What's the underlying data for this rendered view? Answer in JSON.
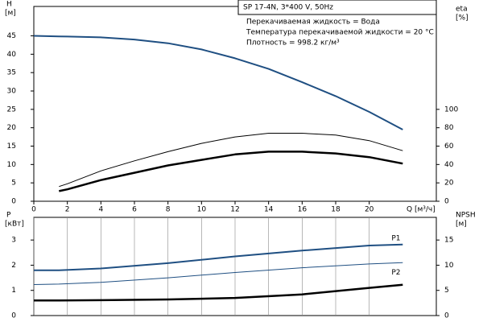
{
  "chart_data": [
    {
      "type": "line",
      "title": "SP 17-4N, 3*400 V, 50Hz",
      "annotations": [
        "Перекачиваемая жидкость = Вода",
        "Температура перекачиваемой жидкости = 20 °C",
        "Плотность = 998.2 кг/м³"
      ],
      "ylabel": "H",
      "yunit": "[м]",
      "y2label": "eta",
      "y2unit": "[%]",
      "xlabel": "Q [м³/ч]",
      "x": [
        0,
        1.5,
        2,
        4,
        6,
        8,
        10,
        12,
        14,
        16,
        18,
        20,
        22
      ],
      "xlim": [
        0,
        24
      ],
      "xticks": [
        0,
        2,
        4,
        6,
        8,
        10,
        12,
        14,
        16,
        18,
        20
      ],
      "xtick_labels": true,
      "ylim": [
        0,
        53
      ],
      "yticks": [
        0,
        5,
        10,
        15,
        20,
        25,
        30,
        35,
        40,
        45
      ],
      "y2lim": [
        0,
        212
      ],
      "y2ticks": [
        0,
        20,
        40,
        60,
        80,
        100
      ],
      "grid": false,
      "series": [
        {
          "color": "#1f4f82",
          "width": 2,
          "values": [
            45,
            44.85,
            44.8,
            44.6,
            44.0,
            43.0,
            41.3,
            38.9,
            36.0,
            32.4,
            28.6,
            24.3,
            19.5
          ]
        },
        {
          "color": "#000000",
          "width": 1,
          "axis": "y2",
          "values": [
            null,
            16,
            19,
            33,
            44,
            54,
            63,
            70,
            74,
            74,
            72,
            66,
            55
          ]
        },
        {
          "color": "#000000",
          "width": 2.5,
          "axis": "y2",
          "values": [
            null,
            11,
            13,
            23,
            31,
            39,
            45,
            51,
            54,
            54,
            52,
            48,
            41
          ]
        }
      ]
    },
    {
      "type": "line",
      "ylabel": "P",
      "yunit": "[кВт]",
      "y2label": "NPSH",
      "y2unit": "[м]",
      "x": [
        0,
        1.5,
        4,
        8,
        12,
        16,
        20,
        22
      ],
      "xlim": [
        0,
        24
      ],
      "xticks": [
        0,
        2,
        4,
        6,
        8,
        10,
        12,
        14,
        16,
        18,
        20
      ],
      "xtick_labels": false,
      "ylim": [
        0,
        3.9
      ],
      "yticks": [
        0,
        1,
        2,
        3
      ],
      "y2lim": [
        0,
        19.5
      ],
      "y2ticks": [
        0,
        5,
        10,
        15
      ],
      "grid": true,
      "series": [
        {
          "name": "P1",
          "color": "#1f4f82",
          "width": 2,
          "values": [
            1.8,
            1.8,
            1.87,
            2.08,
            2.35,
            2.58,
            2.78,
            2.82
          ]
        },
        {
          "name": "P2",
          "color": "#1f4f82",
          "width": 1,
          "values": [
            1.23,
            1.25,
            1.32,
            1.5,
            1.71,
            1.9,
            2.05,
            2.1
          ]
        },
        {
          "color": "#000000",
          "width": 2.5,
          "axis": "y2",
          "values": [
            3.0,
            3.0,
            3.05,
            3.2,
            3.5,
            4.2,
            5.5,
            6.1
          ]
        }
      ]
    }
  ]
}
